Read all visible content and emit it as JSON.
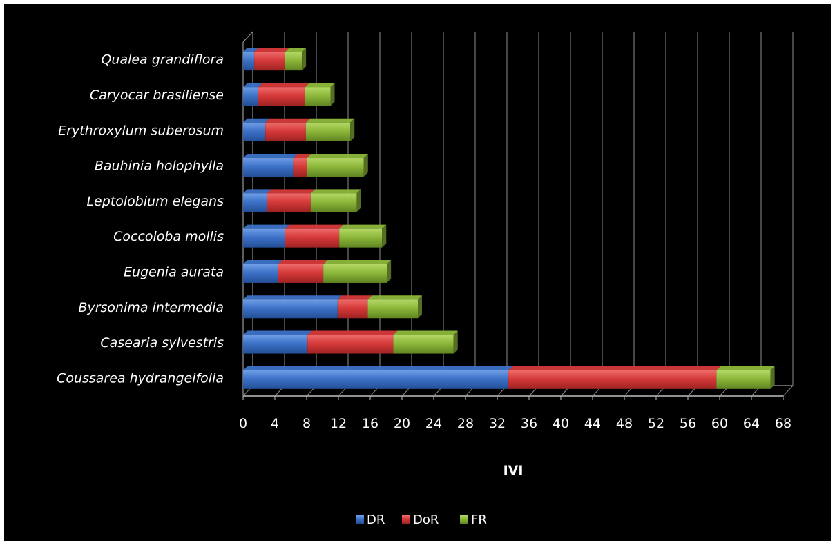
{
  "chart_data": {
    "type": "bar",
    "orientation": "horizontal",
    "stacked": true,
    "style": "3d",
    "categories": [
      "Coussarea hydrangeifolia",
      "Casearia sylvestris",
      "Byrsonima intermedia",
      "Eugenia aurata",
      "Coccoloba mollis",
      "Leptolobium elegans",
      "Bauhinia holophylla",
      "Erythroxylum suberosum",
      "Caryocar brasiliense",
      "Qualea grandiflora"
    ],
    "series": [
      {
        "name": "DR",
        "color": "#3d72c8",
        "values": [
          33.4,
          8.1,
          11.9,
          4.4,
          5.3,
          3.0,
          6.3,
          2.8,
          1.9,
          1.4
        ]
      },
      {
        "name": "DoR",
        "color": "#d63a3a",
        "values": [
          26.2,
          10.8,
          3.8,
          5.7,
          6.8,
          5.5,
          1.7,
          5.1,
          5.9,
          3.9
        ]
      },
      {
        "name": "FR",
        "color": "#8db83a",
        "values": [
          6.8,
          7.6,
          6.3,
          8.0,
          5.4,
          5.8,
          7.2,
          5.6,
          3.2,
          2.1
        ]
      }
    ],
    "xlabel": "IVI",
    "ylabel": "",
    "xlim": [
      0,
      68
    ],
    "xticks": [
      0,
      4,
      8,
      12,
      16,
      20,
      24,
      28,
      32,
      36,
      40,
      44,
      48,
      52,
      56,
      60,
      64,
      68
    ],
    "grid": "vertical",
    "legend_position": "bottom"
  }
}
